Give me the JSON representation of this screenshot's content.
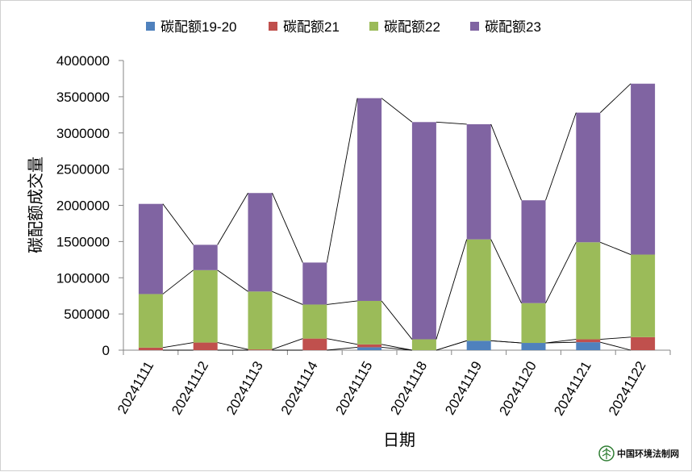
{
  "chart_data": {
    "type": "bar",
    "stacked": true,
    "categories": [
      "20241111",
      "20241112",
      "20241113",
      "20241114",
      "20241115",
      "20241118",
      "20241119",
      "20241120",
      "20241121",
      "20241122"
    ],
    "series": [
      {
        "name": "碳配额19-20",
        "color": "#4f81bd",
        "values": [
          0,
          0,
          0,
          0,
          40000,
          0,
          130000,
          100000,
          110000,
          0
        ]
      },
      {
        "name": "碳配额21",
        "color": "#c0504d",
        "values": [
          35000,
          105000,
          10000,
          160000,
          40000,
          0,
          0,
          0,
          40000,
          180000
        ]
      },
      {
        "name": "碳配额22",
        "color": "#9bbb59",
        "values": [
          740000,
          1000000,
          800000,
          470000,
          600000,
          150000,
          1400000,
          550000,
          1340000,
          1140000
        ]
      },
      {
        "name": "碳配额23",
        "color": "#8064a2",
        "values": [
          1245000,
          350000,
          1360000,
          580000,
          2800000,
          3000000,
          1590000,
          1420000,
          1790000,
          2360000
        ]
      }
    ],
    "title": "",
    "xlabel": "日期",
    "ylabel": "碳配额成交量",
    "ylim": [
      0,
      4000000
    ],
    "yticks": [
      "0",
      "500000",
      "1000000",
      "1500000",
      "2000000",
      "2500000",
      "3000000",
      "3500000",
      "4000000"
    ],
    "grid": false,
    "legend": "top",
    "series_lines": true
  },
  "watermark": {
    "text": "中国环境法制网"
  }
}
